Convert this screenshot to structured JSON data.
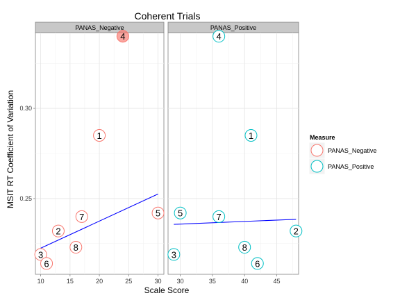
{
  "chart_data": {
    "type": "scatter",
    "title": "Coherent Trials",
    "xlabel": "Scale Score",
    "ylabel": "MSIT RT Coefficient of Variation",
    "ylim": [
      0.208,
      0.342
    ],
    "yticks": [
      0.25,
      0.3
    ],
    "ytick_labels": [
      "0.25",
      "0.30"
    ],
    "grid": true,
    "legend_position": "right",
    "legend": {
      "title": "Measure",
      "entries": [
        {
          "label": "PANAS_Negative",
          "color": "#F8766D"
        },
        {
          "label": "PANAS_Positive",
          "color": "#00BFC4"
        }
      ]
    },
    "panels": [
      {
        "strip": "PANAS_Negative",
        "color": "#F8766D",
        "xlim": [
          9.1,
          31.0
        ],
        "xticks": [
          10,
          15,
          20,
          25,
          30
        ],
        "xtick_labels": [
          "10",
          "15",
          "20",
          "25",
          "30"
        ],
        "points": [
          {
            "label": "4",
            "x": 24,
            "y": 0.34,
            "highlight": true
          },
          {
            "label": "1",
            "x": 20,
            "y": 0.285
          },
          {
            "label": "5",
            "x": 30,
            "y": 0.242
          },
          {
            "label": "7",
            "x": 17,
            "y": 0.24
          },
          {
            "label": "2",
            "x": 13,
            "y": 0.232
          },
          {
            "label": "8",
            "x": 16,
            "y": 0.223
          },
          {
            "label": "3",
            "x": 10,
            "y": 0.219
          },
          {
            "label": "6",
            "x": 11,
            "y": 0.214
          }
        ],
        "fit": {
          "x": [
            10,
            30
          ],
          "y": [
            0.2225,
            0.2525
          ]
        }
      },
      {
        "strip": "PANAS_Positive",
        "color": "#00BFC4",
        "xlim": [
          28.1,
          48.4
        ],
        "xticks": [
          30,
          35,
          40,
          45
        ],
        "xtick_labels": [
          "30",
          "35",
          "40",
          "45"
        ],
        "points": [
          {
            "label": "4",
            "x": 36,
            "y": 0.34
          },
          {
            "label": "1",
            "x": 41,
            "y": 0.285
          },
          {
            "label": "5",
            "x": 30,
            "y": 0.242
          },
          {
            "label": "7",
            "x": 36,
            "y": 0.24
          },
          {
            "label": "2",
            "x": 48,
            "y": 0.232
          },
          {
            "label": "8",
            "x": 40,
            "y": 0.223
          },
          {
            "label": "3",
            "x": 29,
            "y": 0.219
          },
          {
            "label": "6",
            "x": 42,
            "y": 0.214
          }
        ],
        "fit": {
          "x": [
            29,
            48
          ],
          "y": [
            0.2357,
            0.2385
          ]
        }
      }
    ]
  }
}
